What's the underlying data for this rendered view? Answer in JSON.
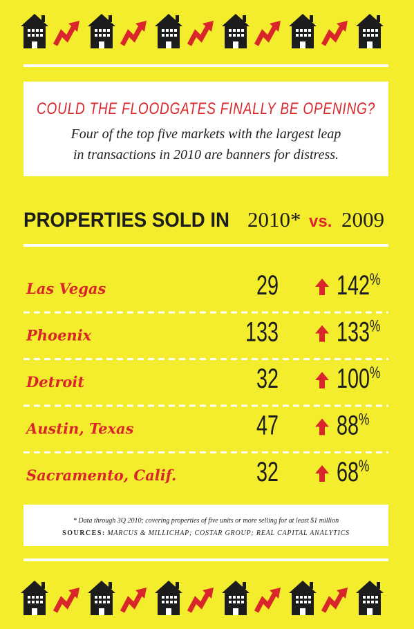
{
  "header": {
    "title": "COULD THE FLOODGATES FINALLY BE OPENING?",
    "subtitle_lines": [
      "Four of the top five markets with the largest leap",
      "in transactions in 2010 are banners for distress."
    ]
  },
  "table": {
    "heading": "PROPERTIES SOLD IN",
    "year_current": "2010*",
    "versus": "vs.",
    "year_previous": "2009",
    "rows": [
      {
        "city": "Las Vegas",
        "sold": 29,
        "change": 142,
        "unit": "%"
      },
      {
        "city": "Phoenix",
        "sold": 133,
        "change": 133,
        "unit": "%"
      },
      {
        "city": "Detroit",
        "sold": 32,
        "change": 100,
        "unit": "%"
      },
      {
        "city": "Austin, Texas",
        "sold": 47,
        "change": 88,
        "unit": "%"
      },
      {
        "city": "Sacramento, Calif.",
        "sold": 32,
        "change": 68,
        "unit": "%"
      }
    ]
  },
  "footnote": {
    "note": "* Data through 3Q 2010; covering properties of five units or more selling for at least $1 million",
    "sources_label": "SOURCES:",
    "sources_text": "MARCUS & MILLICHAP; COSTAR GROUP; REAL CAPITAL ANALYTICS"
  }
}
